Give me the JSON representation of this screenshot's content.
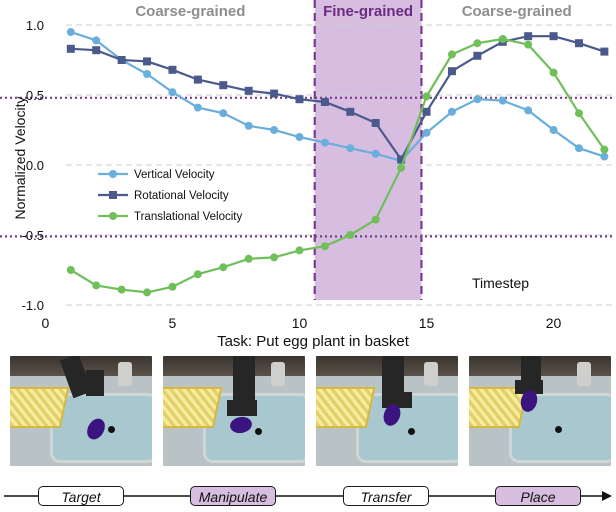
{
  "regions": [
    {
      "label": "Coarse-grained",
      "color": "#8e8e8e",
      "x0": 0.5,
      "x1": 10.6
    },
    {
      "label": "Fine-grained",
      "color": "#6b2c7f",
      "x0": 10.6,
      "x1": 14.8,
      "fill": "#d7bde0"
    },
    {
      "label": "Coarse-grained",
      "color": "#8e8e8e",
      "x0": 14.8,
      "x1": 22.3
    }
  ],
  "thresholds": [
    0.48,
    -0.51
  ],
  "colors": {
    "vertical": "#6aaedb",
    "rotational": "#4b5a8c",
    "translational": "#6fbf5a",
    "purple": "#7a3b8f",
    "purple_fill": "#d7bde0"
  },
  "chart_data": {
    "type": "line",
    "title": "",
    "xlabel": "Task: Put egg plant in basket",
    "ylabel": "Normalized Velocity",
    "annotation": "Timestep",
    "xlim": [
      -1,
      22.3
    ],
    "ylim": [
      -1.05,
      1.05
    ],
    "xticks": [
      0,
      5,
      10,
      15,
      20
    ],
    "yticks": [
      1.0,
      0.5,
      0.0,
      -0.5,
      -1.0
    ],
    "ytick_labels": [
      "1.0",
      "0.5",
      "0.0",
      "-0.5",
      "-1.0"
    ],
    "grid": "horizontal-dashed",
    "legend_position": "middle-left",
    "x": [
      1,
      2,
      3,
      4,
      5,
      6,
      7,
      8,
      9,
      10,
      11,
      12,
      13,
      14,
      15,
      16,
      17,
      18,
      19,
      20,
      21,
      22
    ],
    "series": [
      {
        "name": "Vertical Velocity",
        "color": "#6aaedb",
        "marker": "circle",
        "values": [
          0.95,
          0.89,
          0.75,
          0.65,
          0.52,
          0.41,
          0.37,
          0.28,
          0.25,
          0.2,
          0.16,
          0.12,
          0.08,
          0.03,
          0.23,
          0.38,
          0.47,
          0.46,
          0.39,
          0.25,
          0.12,
          0.06
        ]
      },
      {
        "name": "Rotational Velocity",
        "color": "#4b5a8c",
        "marker": "square",
        "values": [
          0.83,
          0.82,
          0.75,
          0.74,
          0.68,
          0.61,
          0.57,
          0.53,
          0.51,
          0.47,
          0.45,
          0.38,
          0.3,
          0.04,
          0.38,
          0.67,
          0.78,
          0.88,
          0.92,
          0.92,
          0.87,
          0.81
        ]
      },
      {
        "name": "Translational Velocity",
        "color": "#6fbf5a",
        "marker": "circle",
        "values": [
          -0.75,
          -0.86,
          -0.89,
          -0.91,
          -0.87,
          -0.78,
          -0.73,
          -0.67,
          -0.66,
          -0.61,
          -0.58,
          -0.5,
          -0.39,
          -0.02,
          0.49,
          0.79,
          0.87,
          0.9,
          0.86,
          0.66,
          0.37,
          0.11
        ]
      }
    ]
  },
  "frames": [
    {
      "name": "frame-target"
    },
    {
      "name": "frame-manipulate"
    },
    {
      "name": "frame-transfer"
    },
    {
      "name": "frame-place"
    }
  ],
  "stages": [
    {
      "label": "Target",
      "highlight": false
    },
    {
      "label": "Manipulate",
      "highlight": true
    },
    {
      "label": "Transfer",
      "highlight": false
    },
    {
      "label": "Place",
      "highlight": true
    }
  ]
}
